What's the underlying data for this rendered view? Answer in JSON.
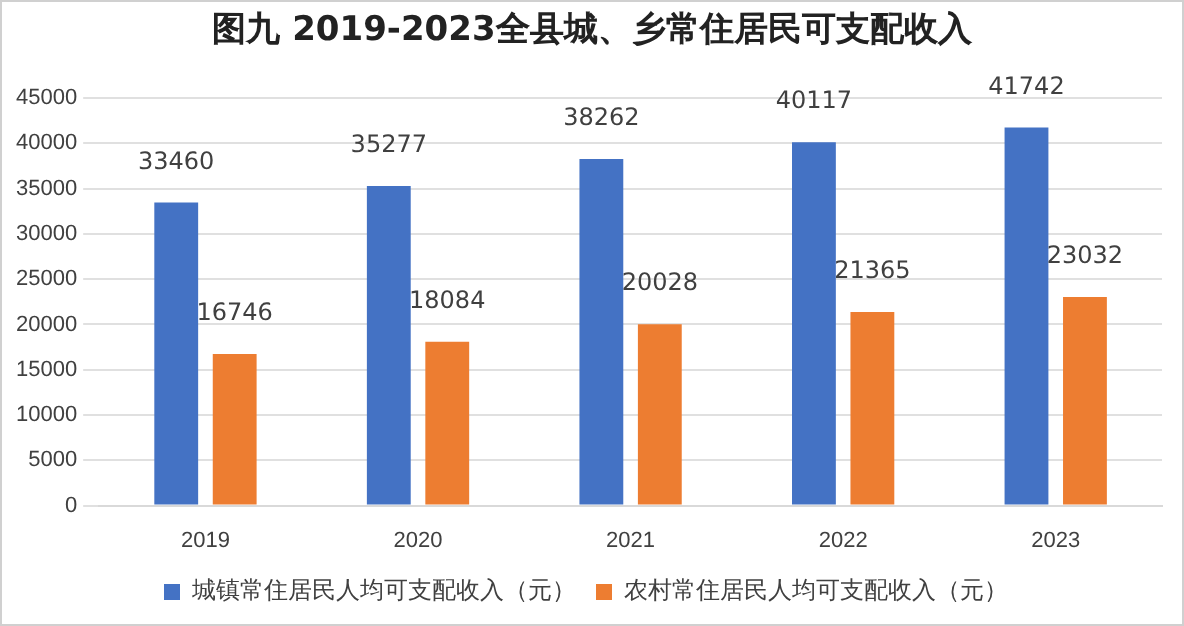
{
  "chart_data": {
    "type": "bar",
    "title": "图九 2019-2023全县城、乡常住居民可支配收入",
    "categories": [
      "2019",
      "2020",
      "2021",
      "2022",
      "2023"
    ],
    "series": [
      {
        "name": "城镇常住居民人均可支配收入（元）",
        "color": "#4472c4",
        "values": [
          33460,
          35277,
          38262,
          40117,
          41742
        ]
      },
      {
        "name": "农村常住居民人均可支配收入（元）",
        "color": "#ed7d31",
        "values": [
          16746,
          18084,
          20028,
          21365,
          23032
        ]
      }
    ],
    "ylim": [
      0,
      45000
    ],
    "yticks": [
      0,
      5000,
      10000,
      15000,
      20000,
      25000,
      30000,
      35000,
      40000,
      45000
    ],
    "grid": "y",
    "legend": "bottom",
    "data_labels": true
  }
}
